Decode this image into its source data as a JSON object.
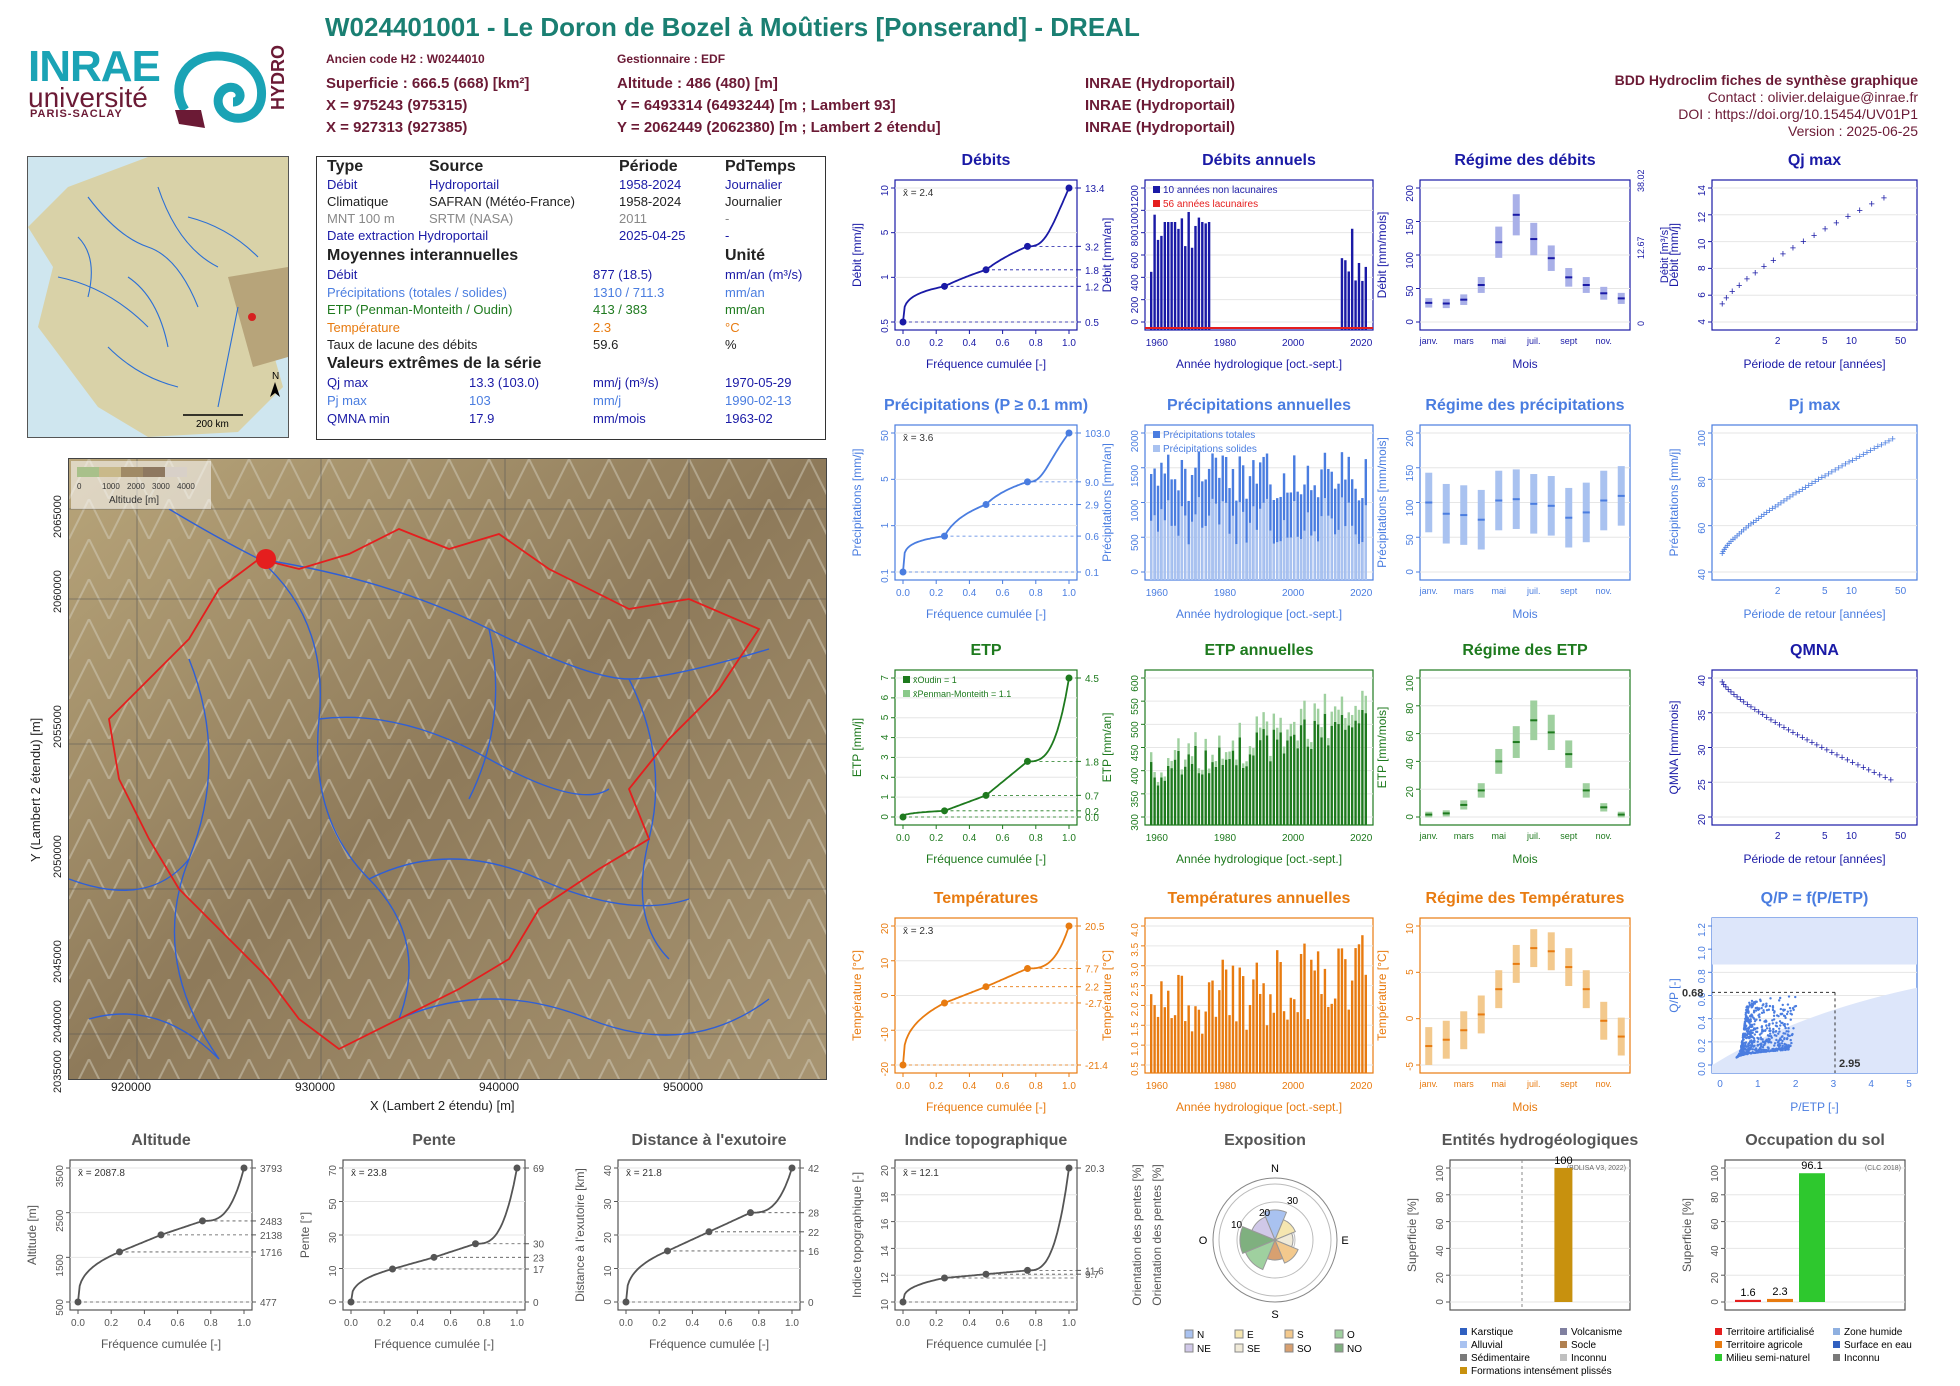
{
  "header": {
    "title": "W024401001 - Le Doron de Bozel à Moûtiers [Ponserand] - DREAL",
    "ancien_code": "Ancien code H2 : W0244010",
    "gestionnaire": "Gestionnaire : EDF",
    "rows": [
      [
        "Superficie : 666.5 (668) [km²]",
        "Altitude : 486 (480) [m]",
        ""
      ],
      [
        "X = 975243 (975315)",
        "Y = 6493314 (6493244) [m ; Lambert 93]",
        "INRAE (Hydroportail)"
      ],
      [
        "X = 927313 (927385)",
        "Y = 2062449 (2062380) [m ; Lambert 2 étendu]",
        "INRAE (Hydroportail)"
      ]
    ],
    "inrae_hydro": "INRAE (Hydroportail)",
    "ref": [
      "BDD Hydroclim fiches de synthèse graphique",
      "Contact : olivier.delaigue@inrae.fr",
      "DOI : https://doi.org/10.15454/UV01P1",
      "Version : 2025-06-25"
    ]
  },
  "logos": {
    "inrae": "INRAE",
    "universite": "université",
    "paris_saclay": "PARIS-SACLAY",
    "hydro": "HYDRO"
  },
  "minimap": {
    "scale": "200 km",
    "north": "N"
  },
  "info": {
    "head": [
      "Type",
      "Source",
      "Période",
      "PdTemps"
    ],
    "rows": [
      {
        "c": [
          "Débit",
          "Hydroportail",
          "1958-2024",
          "Journalier"
        ],
        "color": "#1a1aa6"
      },
      {
        "c": [
          "Climatique",
          "SAFRAN (Météo-France)",
          "1958-2024",
          "Journalier"
        ],
        "color": "#222"
      },
      {
        "c": [
          "MNT 100 m",
          "SRTM (NASA)",
          "2011",
          "-"
        ],
        "color": "#888"
      },
      {
        "c": [
          "Date extraction Hydroportail",
          "",
          "2025-04-25",
          "-"
        ],
        "color": "#1a1aa6"
      }
    ],
    "moy_title": "Moyennes interannuelles",
    "unite_title": "Unité",
    "moy": [
      {
        "c": [
          "Débit",
          "877 (18.5)",
          "mm/an (m³/s)"
        ],
        "color": "#1a1aa6"
      },
      {
        "c": [
          "Précipitations (totales / solides)",
          "1310 / 711.3",
          "mm/an"
        ],
        "color": "#4a7de0"
      },
      {
        "c": [
          "ETP (Penman-Monteith / Oudin)",
          "413 / 383",
          "mm/an"
        ],
        "color": "#1e7a1e"
      },
      {
        "c": [
          "Température",
          "2.3",
          "°C"
        ],
        "color": "#e87b10"
      },
      {
        "c": [
          "Taux de lacune des débits",
          "59.6",
          "%"
        ],
        "color": "#222"
      }
    ],
    "ext_title": "Valeurs extrêmes de la série",
    "ext": [
      {
        "c": [
          "Qj max",
          "13.3 (103.0)",
          "mm/j (m³/s)",
          "1970-05-29"
        ],
        "color": "#1a1aa6"
      },
      {
        "c": [
          "Pj max",
          "103",
          "mm/j",
          "1990-02-13"
        ],
        "color": "#4a7de0"
      },
      {
        "c": [
          "QMNA min",
          "17.9",
          "mm/mois",
          "1963-02"
        ],
        "color": "#1a1aa6"
      }
    ]
  },
  "map": {
    "xlabel": "X (Lambert 2 étendu) [m]",
    "ylabel": "Y (Lambert 2 étendu) [m]",
    "xticks": [
      "920000",
      "930000",
      "940000",
      "950000"
    ],
    "yticks": [
      "2065000",
      "2060000",
      "2055000",
      "2050000",
      "2045000",
      "2040000",
      "2035000"
    ],
    "legend_title": "Altitude [m]",
    "legend_ticks": [
      "0",
      "1000",
      "2000",
      "3000",
      "4000"
    ]
  },
  "colors": {
    "debit": "#1a1aa6",
    "precip": "#4a7de0",
    "etp": "#1e7a1e",
    "temp": "#e87b10",
    "grey": "#555555"
  },
  "chart_data": [
    {
      "id": "debits",
      "type": "line",
      "title": "Débits",
      "xlabel": "Fréquence cumulée [-]",
      "ylabel": "Débit [mm/j]",
      "log": true,
      "mean": "x̄ = 2.4",
      "x": [
        0,
        0.25,
        0.5,
        0.75,
        1
      ],
      "y": [
        0.5,
        1.2,
        1.8,
        3.2,
        13.4
      ],
      "right_ticks": [
        "13.4",
        "3.2",
        "1.8",
        "1.2",
        "0.5"
      ],
      "yticks": [
        "0.5",
        "1",
        "5",
        "10"
      ]
    },
    {
      "id": "debits_an",
      "type": "bar",
      "title": "Débits annuels",
      "xlabel": "Année hydrologique [oct.-sept.]",
      "ylabel": "Débit [mm/an]",
      "xticks": [
        "1960",
        "1980",
        "2000",
        "2020"
      ],
      "yticks": [
        "0",
        "200",
        "400",
        "600",
        "800",
        "1000",
        "1200"
      ],
      "legend": [
        "10 années non lacunaires",
        "56 années lacunaires"
      ]
    },
    {
      "id": "regime_q",
      "type": "box",
      "title": "Régime des débits",
      "xlabel": "Mois",
      "ylabel": "Débit [mm/mois]",
      "ylabel2": "Débit [m³/s]",
      "months": [
        "janv.",
        "mars",
        "mai",
        "juil.",
        "sept",
        "nov."
      ],
      "yticks": [
        "0",
        "50",
        "100",
        "150",
        "200"
      ],
      "right_ticks": [
        "38.02",
        "12.67",
        "0"
      ],
      "median": [
        30,
        29,
        35,
        58,
        125,
        168,
        130,
        100,
        70,
        58,
        45,
        37
      ]
    },
    {
      "id": "qjmax",
      "type": "scatter",
      "title": "Qj max",
      "xlabel": "Période de retour [années]",
      "ylabel": "Débit [mm/j]",
      "xticks": [
        "2",
        "5",
        "10",
        "50"
      ],
      "yticks": [
        "4",
        "6",
        "8",
        "10",
        "12",
        "14"
      ]
    },
    {
      "id": "precip",
      "type": "line",
      "title": "Précipitations (P ≥ 0.1 mm)",
      "xlabel": "Fréquence cumulée [-]",
      "ylabel": "Précipitations [mm/j]",
      "log": true,
      "mean": "x̄ = 3.6",
      "x": [
        0,
        0.25,
        0.5,
        0.75,
        1
      ],
      "y": [
        0.1,
        0.6,
        2.9,
        9.0,
        103.0
      ],
      "right_ticks": [
        "103.0",
        "9.0",
        "2.9",
        "0.6",
        "0.1"
      ],
      "yticks": [
        "0.1",
        "1",
        "5",
        "50"
      ]
    },
    {
      "id": "precip_an",
      "type": "bar",
      "title": "Précipitations annuelles",
      "xlabel": "Année hydrologique [oct.-sept.]",
      "ylabel": "Précipitations [mm/an]",
      "xticks": [
        "1960",
        "1980",
        "2000",
        "2020"
      ],
      "yticks": [
        "0",
        "500",
        "1000",
        "1500",
        "2000"
      ],
      "legend": [
        "Précipitations totales",
        "Précipitations solides"
      ]
    },
    {
      "id": "regime_p",
      "type": "box",
      "title": "Régime des précipitations",
      "xlabel": "Mois",
      "ylabel": "Précipitations [mm/mois]",
      "months": [
        "janv.",
        "mars",
        "mai",
        "juil.",
        "sept",
        "nov."
      ],
      "yticks": [
        "0",
        "50",
        "100",
        "150",
        "200"
      ],
      "median": [
        105,
        88,
        86,
        79,
        108,
        110,
        103,
        100,
        82,
        90,
        108,
        115
      ]
    },
    {
      "id": "pjmax",
      "type": "scatter",
      "title": "Pj max",
      "xlabel": "Période de retour [années]",
      "ylabel": "Précipitations [mm/j]",
      "xticks": [
        "2",
        "5",
        "10",
        "50"
      ],
      "yticks": [
        "40",
        "60",
        "80",
        "100"
      ]
    },
    {
      "id": "etp",
      "type": "line",
      "title": "ETP",
      "xlabel": "Fréquence cumulée [-]",
      "ylabel": "ETP [mm/j]",
      "mean": "",
      "legend": [
        "x̄Oudin = 1",
        "x̄Penman-Monteith = 1.1"
      ],
      "x": [
        0,
        0.25,
        0.5,
        0.75,
        1
      ],
      "y": [
        0.0,
        0.2,
        0.7,
        1.8,
        4.5
      ],
      "right_ticks": [
        "4.5",
        "1.8",
        "0.7",
        "0.2",
        "0.0"
      ],
      "yticks": [
        "0",
        "1",
        "2",
        "3",
        "4",
        "5",
        "6",
        "7"
      ]
    },
    {
      "id": "etp_an",
      "type": "bar",
      "title": "ETP annuelles",
      "xlabel": "Année hydrologique [oct.-sept.]",
      "ylabel": "ETP [mm/an]",
      "xticks": [
        "1960",
        "1980",
        "2000",
        "2020"
      ],
      "yticks": [
        "300",
        "350",
        "400",
        "450",
        "500",
        "550",
        "600"
      ]
    },
    {
      "id": "regime_etp",
      "type": "box",
      "title": "Régime des ETP",
      "xlabel": "Mois",
      "ylabel": "ETP [mm/mois]",
      "months": [
        "janv.",
        "mars",
        "mai",
        "juil.",
        "sept",
        "nov."
      ],
      "yticks": [
        "0",
        "20",
        "40",
        "60",
        "80",
        "100"
      ],
      "median": [
        2,
        3,
        10,
        22,
        46,
        62,
        80,
        70,
        52,
        22,
        8,
        2
      ]
    },
    {
      "id": "qmna",
      "type": "scatter",
      "title": "QMNA",
      "xlabel": "Période de retour [années]",
      "ylabel": "QMNA [mm/mois]",
      "xticks": [
        "2",
        "5",
        "10",
        "50"
      ],
      "yticks": [
        "20",
        "25",
        "30",
        "35",
        "40"
      ]
    },
    {
      "id": "temp",
      "type": "line",
      "title": "Températures",
      "xlabel": "Fréquence cumulée [-]",
      "ylabel": "Température [°C]",
      "mean": "x̄ = 2.3",
      "x": [
        0,
        0.25,
        0.5,
        0.75,
        1
      ],
      "y": [
        -21.4,
        -2.7,
        2.2,
        7.7,
        20.5
      ],
      "right_ticks": [
        "20.5",
        "7.7",
        "2.2",
        "-2.7",
        "-21.4"
      ],
      "yticks": [
        "-20",
        "-10",
        "0",
        "10",
        "20"
      ]
    },
    {
      "id": "temp_an",
      "type": "bar",
      "title": "Températures annuelles",
      "xlabel": "Année hydrologique [oct.-sept.]",
      "ylabel": "Température [°C]",
      "xticks": [
        "1960",
        "1980",
        "2000",
        "2020"
      ],
      "yticks": [
        "0.5",
        "1.0",
        "1.5",
        "2.0",
        "2.5",
        "3.0",
        "3.5",
        "4.0"
      ]
    },
    {
      "id": "regime_t",
      "type": "box",
      "title": "Régime des Températures",
      "xlabel": "Mois",
      "ylabel": "Température [°C]",
      "months": [
        "janv.",
        "mars",
        "mai",
        "juil.",
        "sept",
        "nov."
      ],
      "yticks": [
        "-5",
        "0",
        "5",
        "10"
      ],
      "median": [
        -5,
        -4,
        -2.5,
        0,
        4,
        8,
        10.5,
        10,
        7.5,
        4,
        -1,
        -3.5
      ]
    },
    {
      "id": "qp",
      "type": "scatter",
      "title": "Q/P = f(P/ETP)",
      "xlabel": "P/ETP [-]",
      "ylabel": "Q/P [-]",
      "xticks": [
        "0",
        "1",
        "2",
        "3",
        "4",
        "5"
      ],
      "yticks": [
        "0.0",
        "0.2",
        "0.4",
        "0.6",
        "0.8",
        "1.0",
        "1.2"
      ],
      "labels": [
        "0.68",
        "2.95"
      ]
    },
    {
      "id": "altitude",
      "type": "line",
      "title": "Altitude",
      "xlabel": "Fréquence cumulée [-]",
      "ylabel": "Altitude [m]",
      "mean": "x̄ = 2087.8",
      "x": [
        0,
        0.25,
        0.5,
        0.75,
        1
      ],
      "y": [
        477,
        1716,
        2138,
        2483,
        3793
      ],
      "right_ticks": [
        "3793",
        "2483",
        "2138",
        "1716",
        "477"
      ],
      "yticks": [
        "500",
        "1500",
        "2500",
        "3500"
      ]
    },
    {
      "id": "pente",
      "type": "line",
      "title": "Pente",
      "xlabel": "Fréquence cumulée [-]",
      "ylabel": "Pente [°]",
      "mean": "x̄ = 23.8",
      "x": [
        0,
        0.25,
        0.5,
        0.75,
        1
      ],
      "y": [
        0,
        17,
        23,
        30,
        69
      ],
      "right_ticks": [
        "69",
        "30",
        "23",
        "17",
        "0"
      ],
      "yticks": [
        "0",
        "10",
        "30",
        "50",
        "70"
      ]
    },
    {
      "id": "distance",
      "type": "line",
      "title": "Distance à l'exutoire",
      "xlabel": "Fréquence cumulée [-]",
      "ylabel": "Distance à l'exutoire [km]",
      "mean": "x̄ = 21.8",
      "x": [
        0,
        0.25,
        0.5,
        0.75,
        1
      ],
      "y": [
        0,
        16,
        22,
        28,
        42
      ],
      "right_ticks": [
        "42",
        "28",
        "22",
        "16",
        "0"
      ],
      "yticks": [
        "0",
        "10",
        "20",
        "30",
        "40"
      ]
    },
    {
      "id": "indice",
      "type": "line",
      "title": "Indice topographique",
      "xlabel": "Fréquence cumulée [-]",
      "ylabel": "Indice topographique [-]",
      "mean": "x̄ = 12.1",
      "x": [
        0,
        0.25,
        0.5,
        0.75,
        1
      ],
      "y": [
        9.7,
        11.6,
        11.9,
        12.2,
        20.3
      ],
      "right_ticks": [
        "20.3",
        "11.6",
        "9.7"
      ],
      "yticks": [
        "10",
        "12",
        "14",
        "16",
        "18",
        "20"
      ]
    },
    {
      "id": "exposition",
      "type": "pie",
      "title": "Exposition",
      "ylabel": "Orientation des pentes [%]",
      "dirs": [
        "N",
        "E",
        "S",
        "O"
      ],
      "rings": [
        "10",
        "20",
        "30"
      ],
      "legend": [
        "N",
        "E",
        "S",
        "O",
        "NE",
        "SE",
        "SO",
        "NO"
      ]
    },
    {
      "id": "hydrogeo",
      "type": "bar",
      "title": "Entités hydrogéologiques",
      "ylabel": "Superficie [%]",
      "note": "(BDLISA V3, 2022)",
      "value": 100,
      "label": "100",
      "yticks": [
        "0",
        "20",
        "40",
        "60",
        "80",
        "100"
      ],
      "legend": [
        "Karstique",
        "Volcanisme",
        "Alluvial",
        "Socle",
        "Sédimentaire",
        "Inconnu",
        "Formations intensément plissés"
      ]
    },
    {
      "id": "occupation",
      "type": "bar",
      "title": "Occupation du sol",
      "ylabel": "Superficie [%]",
      "note": "(CLC 2018)",
      "values": [
        1.6,
        2.3,
        96.1
      ],
      "labels": [
        "1.6",
        "2.3",
        "96.1"
      ],
      "yticks": [
        "0",
        "20",
        "40",
        "60",
        "80",
        "100"
      ],
      "legend": [
        "Territoire artificialisé",
        "Zone humide",
        "Territoire agricole",
        "Surface en eau",
        "Milieu semi-naturel",
        "Inconnu"
      ]
    }
  ]
}
